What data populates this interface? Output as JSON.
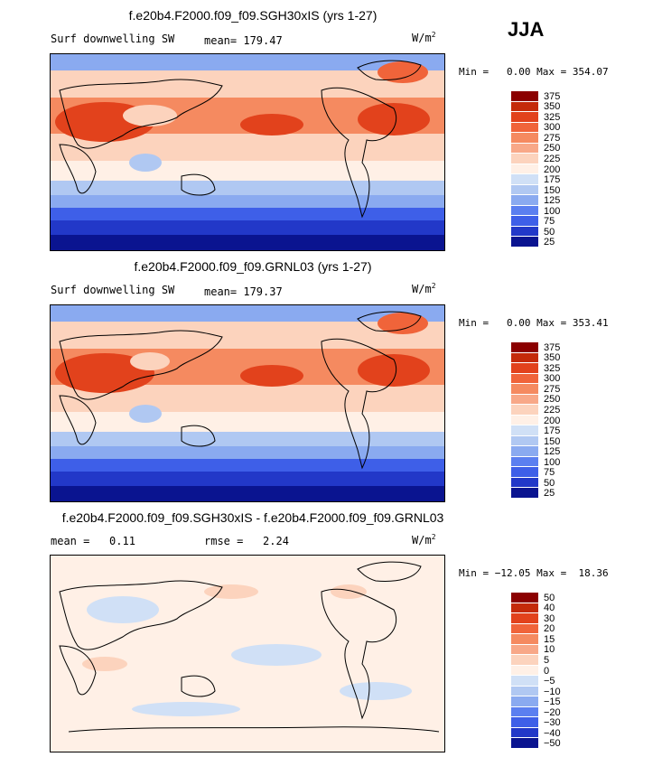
{
  "season": "JJA",
  "panels": [
    {
      "title": "f.e20b4.F2000.f09_f09.SGH30xIS (yrs 1-27)",
      "variable": "Surf downwelling SW",
      "stat": "mean= 179.47",
      "units": "W/m",
      "units_sup": "2",
      "minmax": "Min =   0.00 Max = 354.07",
      "levels": [
        "375",
        "350",
        "325",
        "300",
        "275",
        "250",
        "225",
        "200",
        "175",
        "150",
        "125",
        "100",
        "75",
        "50",
        "25"
      ],
      "colors": [
        "#8b0000",
        "#c42a0a",
        "#e2421c",
        "#f0643a",
        "#f58a60",
        "#f8a888",
        "#fcd3bd",
        "#fff0e6",
        "#d0e0f6",
        "#b0c8f2",
        "#8aaaf0",
        "#5b7ff0",
        "#3e5fe8",
        "#2238c8",
        "#0a1490"
      ]
    },
    {
      "title": "f.e20b4.F2000.f09_f09.GRNL03 (yrs 1-27)",
      "variable": "Surf downwelling SW",
      "stat": "mean= 179.37",
      "units": "W/m",
      "units_sup": "2",
      "minmax": "Min =   0.00 Max = 353.41",
      "levels": [
        "375",
        "350",
        "325",
        "300",
        "275",
        "250",
        "225",
        "200",
        "175",
        "150",
        "125",
        "100",
        "75",
        "50",
        "25"
      ],
      "colors": [
        "#8b0000",
        "#c42a0a",
        "#e2421c",
        "#f0643a",
        "#f58a60",
        "#f8a888",
        "#fcd3bd",
        "#fff0e6",
        "#d0e0f6",
        "#b0c8f2",
        "#8aaaf0",
        "#5b7ff0",
        "#3e5fe8",
        "#2238c8",
        "#0a1490"
      ]
    },
    {
      "title": "f.e20b4.F2000.f09_f09.SGH30xIS - f.e20b4.F2000.f09_f09.GRNL03",
      "variable": "mean =   0.11",
      "stat": "rmse =   2.24",
      "units": "W/m",
      "units_sup": "2",
      "minmax": "Min = −12.05 Max =  18.36",
      "levels": [
        "50",
        "40",
        "30",
        "20",
        "15",
        "10",
        "5",
        "0",
        "−5",
        "−10",
        "−15",
        "−20",
        "−30",
        "−40",
        "−50"
      ],
      "colors": [
        "#8b0000",
        "#c42a0a",
        "#e2421c",
        "#f0643a",
        "#f58a60",
        "#f8a888",
        "#fcd3bd",
        "#fff0e6",
        "#d0e0f6",
        "#b0c8f2",
        "#8aaaf0",
        "#5b7ff0",
        "#3e5fe8",
        "#2238c8",
        "#0a1490"
      ]
    }
  ]
}
